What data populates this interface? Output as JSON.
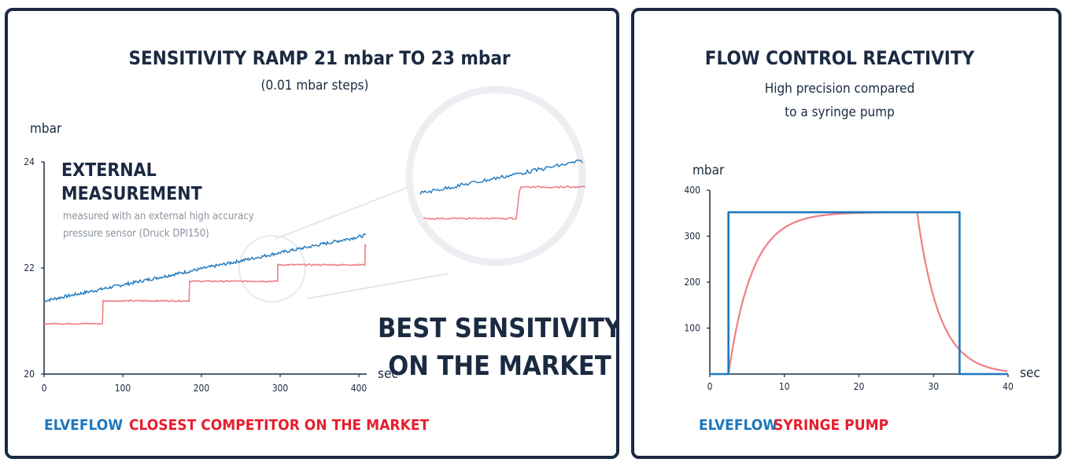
{
  "colors": {
    "elveflow": "#1d78be",
    "competitor": "#e61e2d",
    "competitor_line": "#ef7f86",
    "navy": "#1b2a41"
  },
  "chart_data": [
    {
      "type": "line",
      "title": "SENSITIVITY RAMP 21 mbar TO 23 mbar",
      "subtitle": "(0.01 mbar steps)",
      "ylabel": "mbar",
      "xlabel": "sec",
      "xlim": [
        0,
        410
      ],
      "ylim": [
        20,
        24
      ],
      "xticks": [
        0,
        100,
        200,
        300,
        400
      ],
      "yticks": [
        20,
        22,
        24
      ],
      "annotation_head": [
        "EXTERNAL",
        "MEASUREMENT"
      ],
      "annotation_note": [
        "measured with an external high accuracy",
        "pressure sensor (Druck DPI150)"
      ],
      "callout": [
        "BEST SENSITIVITY",
        "ON THE MARKET"
      ],
      "series": [
        {
          "name": "ELVEFLOW",
          "x": [
            0,
            410
          ],
          "y": [
            21.38,
            22.62
          ]
        },
        {
          "name": "CLOSEST COMPETITOR ON THE MARKET",
          "steps": [
            [
              0,
              20.95
            ],
            [
              75,
              21.38
            ],
            [
              185,
              21.75
            ],
            [
              297,
              22.06
            ],
            [
              408,
              22.42
            ]
          ],
          "x_end": 410
        }
      ]
    },
    {
      "type": "line",
      "title": "FLOW CONTROL REACTIVITY",
      "subtitle": [
        "High precision compared",
        "to a syringe pump"
      ],
      "ylabel": "mbar",
      "xlabel": "sec",
      "xlim": [
        0,
        40
      ],
      "ylim": [
        0,
        400
      ],
      "xticks": [
        0,
        10,
        20,
        30,
        40
      ],
      "yticks": [
        100,
        200,
        300,
        400
      ],
      "series": [
        {
          "name": "ELVEFLOW",
          "x": [
            0,
            2.5,
            2.5,
            33.5,
            33.5,
            40
          ],
          "y": [
            0,
            0,
            352,
            352,
            0,
            0
          ]
        },
        {
          "name": "SYRINGE PUMP",
          "rise_start": 2.5,
          "plateau": 352,
          "rise_tau": 3.2,
          "fall_start": 27.8,
          "fall_tau": 3.0,
          "x_end": 40
        }
      ]
    }
  ]
}
